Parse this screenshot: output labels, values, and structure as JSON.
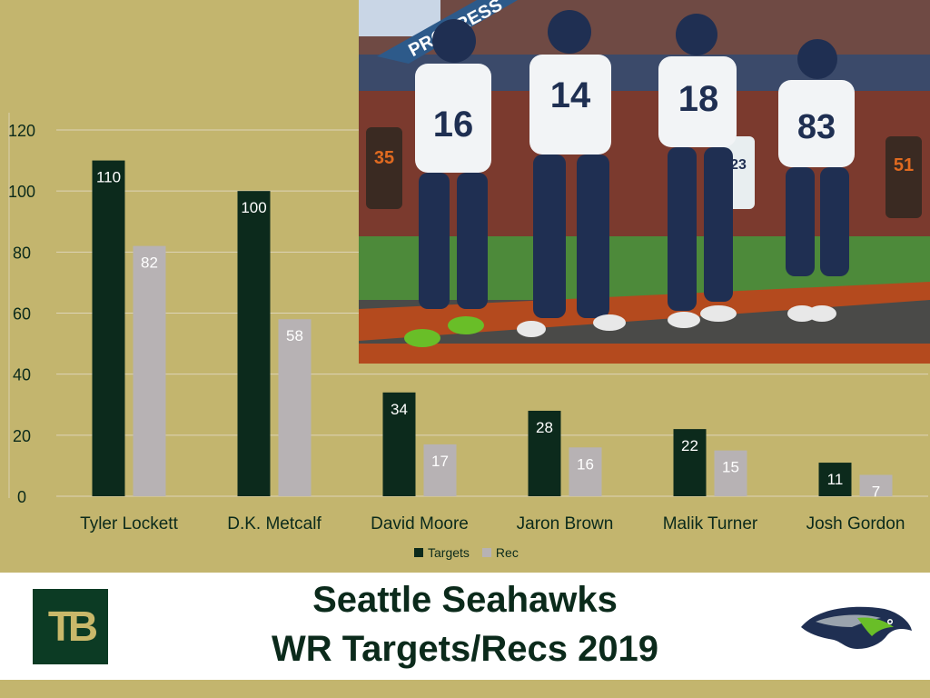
{
  "chart_data": {
    "type": "bar",
    "categories": [
      "Tyler Lockett",
      "D.K. Metcalf",
      "David Moore",
      "Jaron Brown",
      "Malik Turner",
      "Josh Gordon"
    ],
    "series": [
      {
        "name": "Targets",
        "values": [
          110,
          100,
          34,
          28,
          22,
          11
        ],
        "color": "#0c2a1c"
      },
      {
        "name": "Rec",
        "values": [
          82,
          58,
          17,
          16,
          15,
          7
        ],
        "color": "#b7b2b4"
      }
    ],
    "ylim": [
      0,
      120
    ],
    "yticks": [
      "0",
      "20",
      "40",
      "60",
      "80",
      "100",
      "120"
    ],
    "grid": true,
    "legend": "bottom"
  },
  "title": {
    "line1": "Seattle Seahawks",
    "line2": "WR Targets/Recs 2019"
  },
  "logos": {
    "left_text": "TB"
  },
  "photo": {
    "jerseys": [
      "16",
      "14",
      "18",
      "83"
    ],
    "bg_jerseys": [
      "35",
      "23",
      "51"
    ],
    "sign_text": "PROGRESS"
  },
  "colors": {
    "background": "#c3b56e",
    "targets": "#0c2a1c",
    "rec": "#b7b2b4",
    "title": "#0b2a1b",
    "navy": "#1f2f52",
    "seahawks_green": "#69be28"
  }
}
